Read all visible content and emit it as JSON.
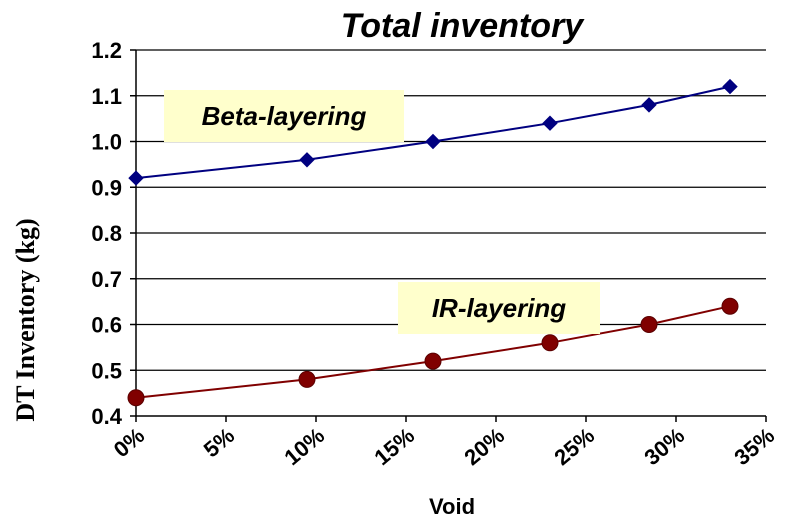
{
  "chart_data": {
    "type": "line",
    "title": "Total inventory",
    "xlabel": "Void",
    "ylabel": "DT Inventory (kg)",
    "x_tick_labels": [
      "0%",
      "5%",
      "10%",
      "15%",
      "20%",
      "25%",
      "30%",
      "35%"
    ],
    "y_tick_labels": [
      "0.4",
      "0.5",
      "0.6",
      "0.7",
      "0.8",
      "0.9",
      "1.0",
      "1.1",
      "1.2"
    ],
    "xlim": [
      0,
      35
    ],
    "ylim": [
      0.4,
      1.2
    ],
    "grid": true,
    "x": [
      0,
      9.5,
      16.5,
      23,
      28.5,
      33
    ],
    "series": [
      {
        "name": "Beta-layering",
        "color": "#000080",
        "marker": "diamond",
        "values": [
          0.92,
          0.96,
          1.0,
          1.04,
          1.08,
          1.12
        ]
      },
      {
        "name": "IR-layering",
        "color": "#800000",
        "marker": "circle",
        "values": [
          0.44,
          0.48,
          0.52,
          0.56,
          0.6,
          0.64
        ]
      }
    ],
    "annotations": [
      {
        "text": "Beta-layering",
        "series": 0
      },
      {
        "text": "IR-layering",
        "series": 1
      }
    ]
  }
}
